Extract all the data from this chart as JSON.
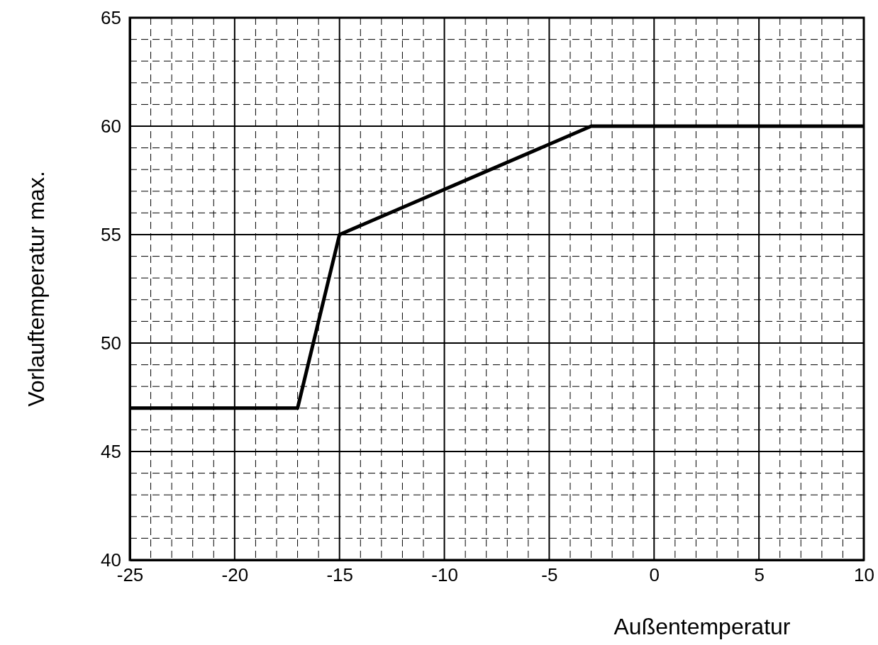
{
  "chart_data": {
    "type": "line",
    "xlabel": "Außentemperatur",
    "ylabel": "Vorlauftemperatur max.",
    "x": [
      -25,
      -17,
      -15,
      -3,
      10
    ],
    "series": [
      {
        "color": "#000000",
        "values": [
          47,
          47,
          55,
          60,
          60
        ]
      }
    ],
    "xlim": [
      -25,
      10
    ],
    "ylim": [
      40,
      65
    ],
    "xticks": [
      -25,
      {
        "value": -24,
        "label": null
      },
      {
        "value": -23,
        "label": null
      },
      {
        "value": -22,
        "label": null
      },
      {
        "value": -21,
        "label": null
      },
      -20,
      {
        "value": -19,
        "label": null
      },
      {
        "value": -18,
        "label": null
      },
      {
        "value": -17,
        "label": null
      },
      {
        "value": -16,
        "label": null
      },
      -15,
      {
        "value": -14,
        "label": null
      },
      {
        "value": -13,
        "label": null
      },
      {
        "value": -12,
        "label": null
      },
      {
        "value": -11,
        "label": null
      },
      -10,
      {
        "value": -9,
        "label": null
      },
      {
        "value": -8,
        "label": null
      },
      {
        "value": -7,
        "label": null
      },
      {
        "value": -6,
        "label": null
      },
      -5,
      {
        "value": -4,
        "label": null
      },
      {
        "value": -3,
        "label": null
      },
      {
        "value": -2,
        "label": null
      },
      {
        "value": -1,
        "label": null
      },
      0,
      {
        "value": 1,
        "label": null
      },
      {
        "value": 2,
        "label": null
      },
      {
        "value": 3,
        "label": null
      },
      {
        "value": 4,
        "label": null
      },
      5,
      {
        "value": 6,
        "label": null
      },
      {
        "value": 7,
        "label": null
      },
      {
        "value": 8,
        "label": null
      },
      {
        "value": 9,
        "label": null
      },
      10
    ],
    "yticks": [
      40,
      {
        "value": 41,
        "label": null
      },
      {
        "value": 42,
        "label": null
      },
      {
        "value": 43,
        "label": null
      },
      {
        "value": 44,
        "label": null
      },
      45,
      {
        "value": 46,
        "label": null
      },
      {
        "value": 47,
        "label": null
      },
      {
        "value": 48,
        "label": null
      },
      {
        "value": 49,
        "label": null
      },
      50,
      {
        "value": 51,
        "label": null
      },
      {
        "value": 52,
        "label": null
      },
      {
        "value": 53,
        "label": null
      },
      {
        "value": 54,
        "label": null
      },
      55,
      {
        "value": 56,
        "label": null
      },
      {
        "value": 57,
        "label": null
      },
      {
        "value": 58,
        "label": null
      },
      {
        "value": 59,
        "label": null
      },
      60,
      {
        "value": 61,
        "label": null
      },
      {
        "value": 62,
        "label": null
      },
      {
        "value": 63,
        "label": null
      },
      {
        "value": 64,
        "label": null
      },
      65
    ],
    "grid": true,
    "line_style": "solid",
    "marker": "none"
  }
}
